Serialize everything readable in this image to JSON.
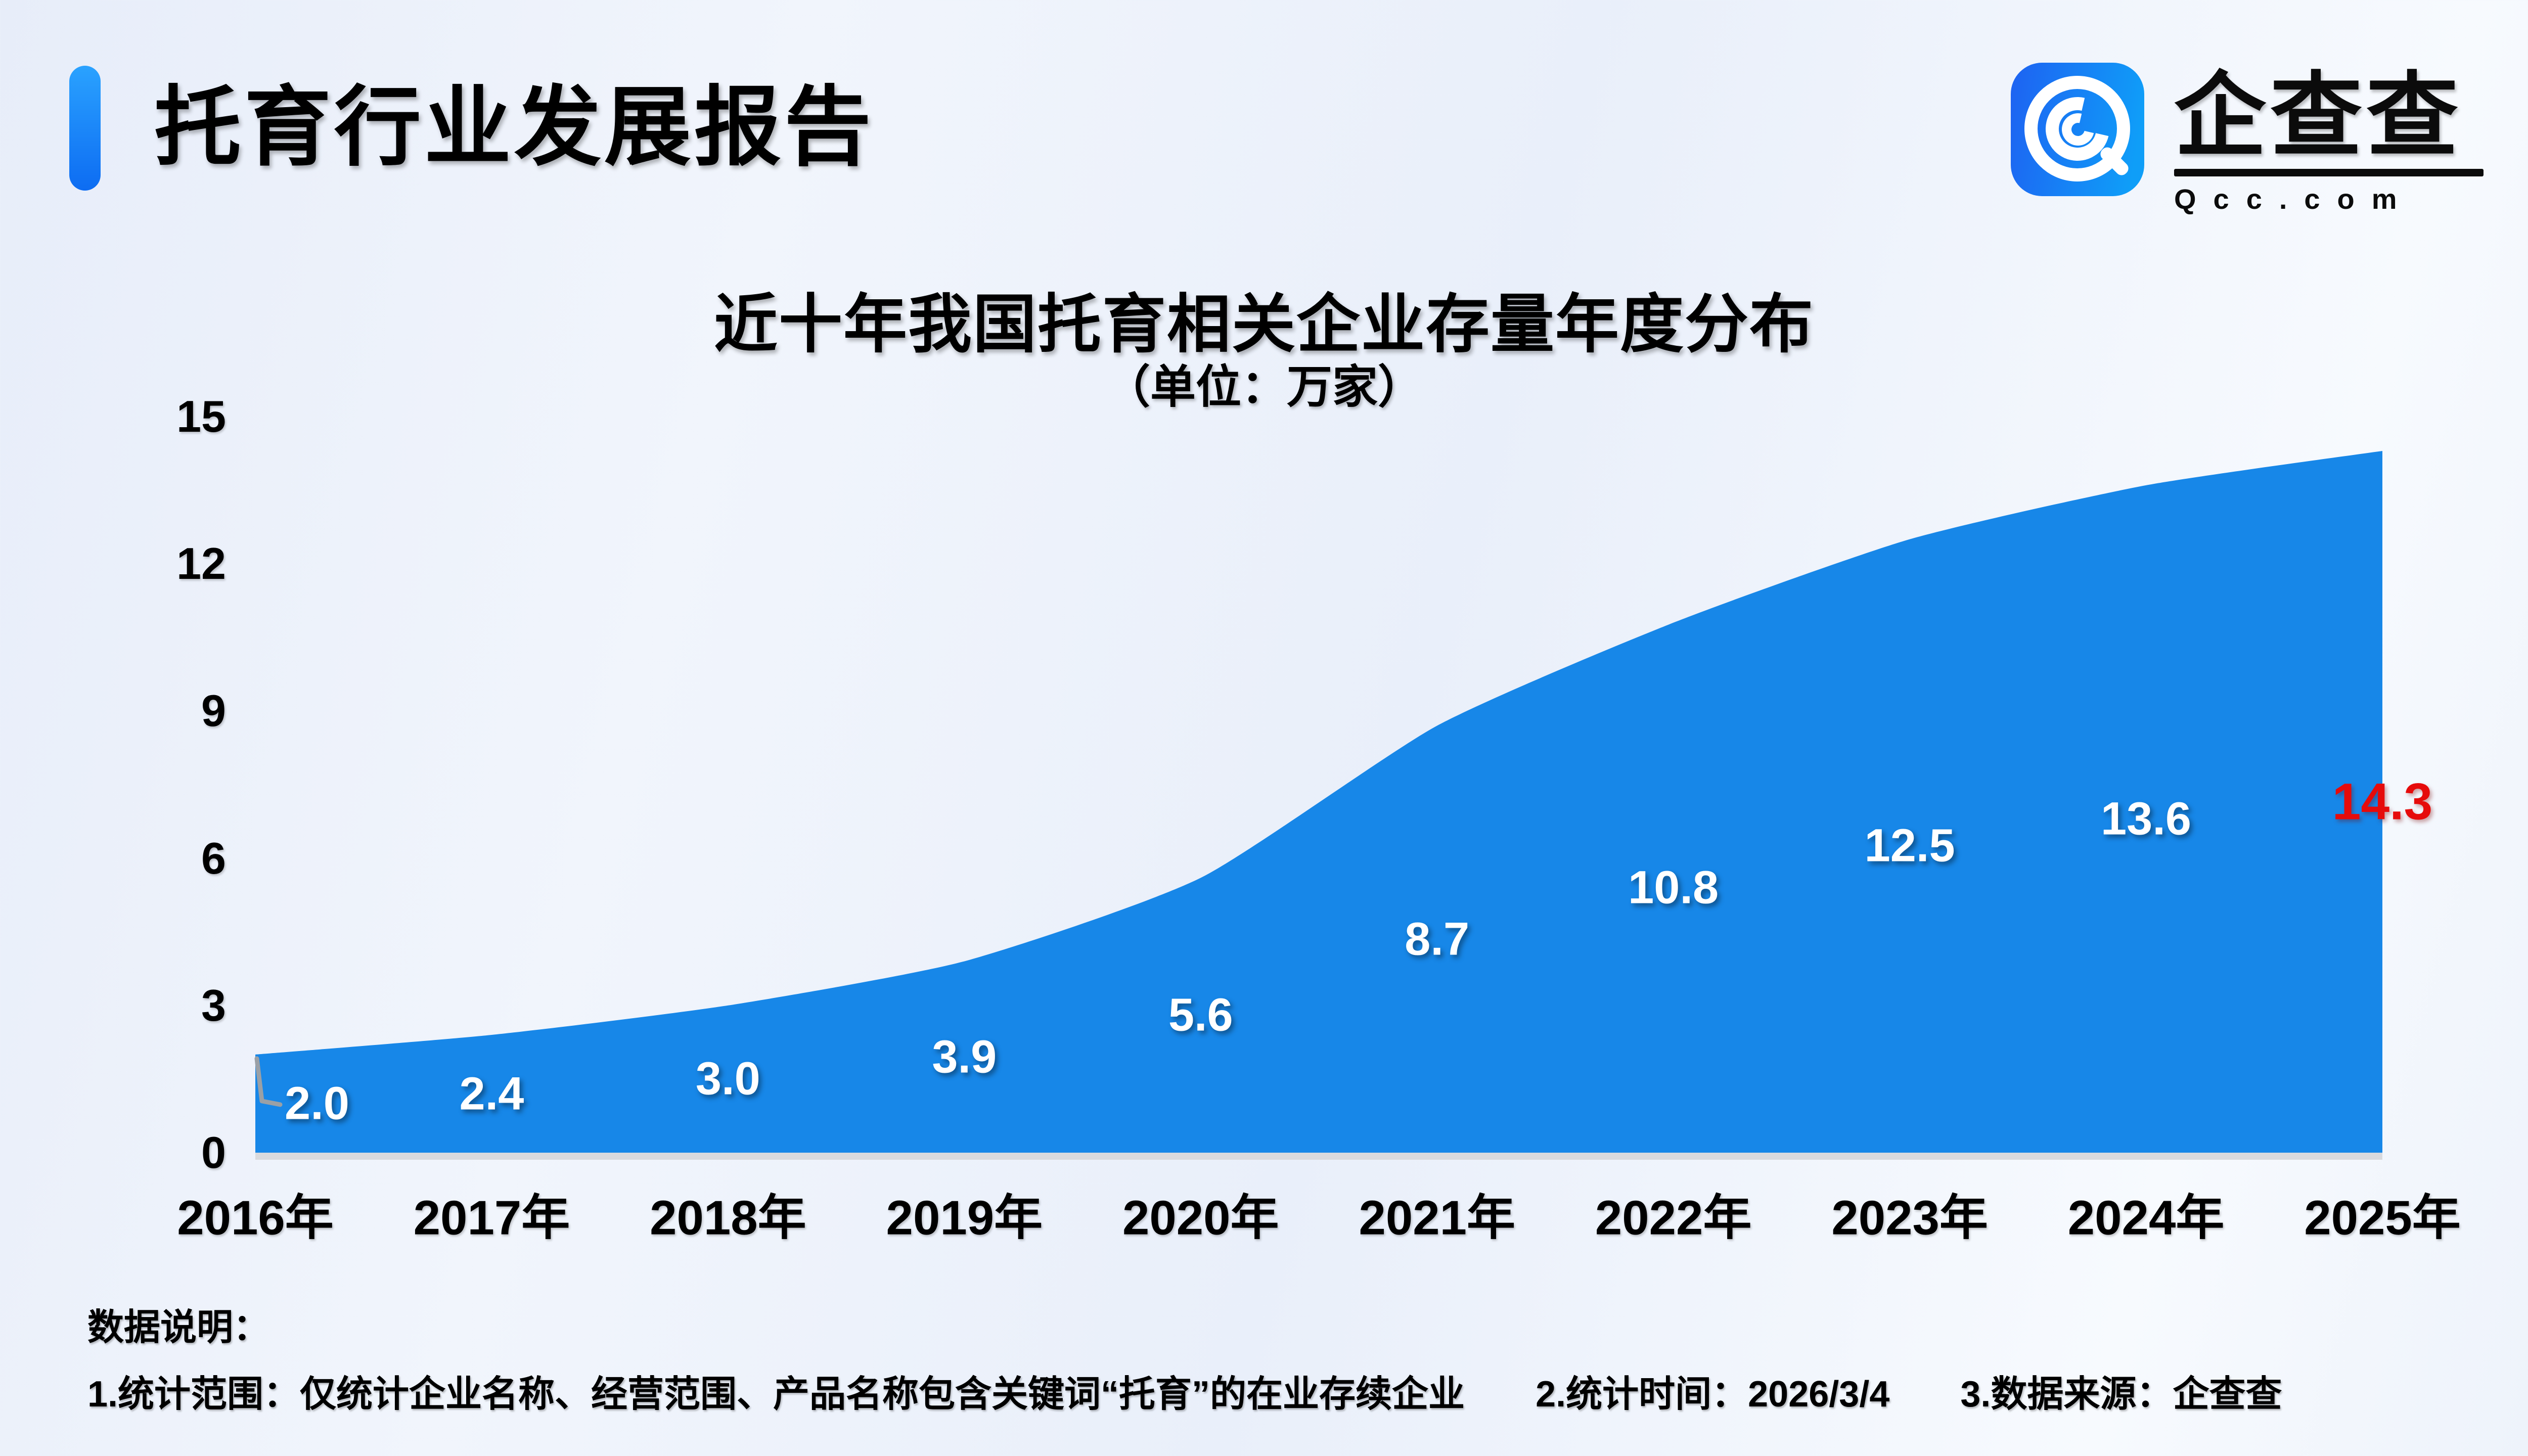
{
  "header": {
    "title": "托育行业发展报告"
  },
  "logo": {
    "name": "企查查",
    "domain": "Qcc.com"
  },
  "chart_data": {
    "type": "area",
    "title": "近十年我国托育相关企业存量年度分布",
    "subtitle": "（单位：万家）",
    "categories": [
      "2016年",
      "2017年",
      "2018年",
      "2019年",
      "2020年",
      "2021年",
      "2022年",
      "2023年",
      "2024年",
      "2025年"
    ],
    "values": [
      2.0,
      2.4,
      3.0,
      3.9,
      5.6,
      8.7,
      10.8,
      12.5,
      13.6,
      14.3
    ],
    "point_labels": [
      "2.0",
      "2.4",
      "3.0",
      "3.9",
      "5.6",
      "8.7",
      "10.8",
      "12.5",
      "13.6",
      "14.3"
    ],
    "ylim": [
      0,
      15
    ],
    "yticks": [
      0,
      3,
      6,
      9,
      12,
      15
    ],
    "grid": false,
    "legend": "none",
    "highlight_last_label": true
  },
  "notes": {
    "heading": "数据说明：",
    "items": [
      "1.统计范围：仅统计企业名称、经营范围、产品名称包含关键词“托育”的在业存续企业",
      "2.统计时间：2026/3/4",
      "3.数据来源：企查查"
    ]
  },
  "colors": {
    "area": "#1787e8",
    "highlight": "#e60b0b",
    "label": "#ffffff",
    "axis_text": "#000000",
    "baseline": "#d9dade",
    "axis_mark": "#9aa0a6",
    "accent_top": "#2aa2ff",
    "accent_bottom": "#0d6cf2",
    "logo_a": "#1d65f2",
    "logo_b": "#0f9ef8"
  }
}
